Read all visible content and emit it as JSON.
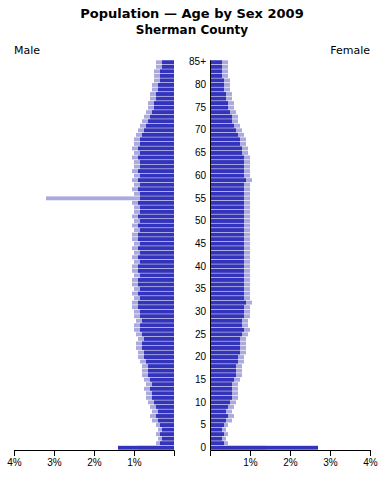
{
  "chart_data": [
    {
      "type": "bar",
      "orientation": "horizontal",
      "title": "Population — Age by Sex 2009",
      "subtitle": "Sherman County",
      "annotations": [
        "Male"
      ],
      "tick_labels": "x",
      "grid": false,
      "categories": [
        "0",
        null,
        null,
        null,
        null,
        "5",
        null,
        null,
        null,
        null,
        "10",
        null,
        null,
        null,
        null,
        "15",
        null,
        null,
        null,
        null,
        "20",
        null,
        null,
        null,
        null,
        "25",
        null,
        null,
        null,
        null,
        "30",
        null,
        null,
        null,
        null,
        "35",
        null,
        null,
        null,
        null,
        "40",
        null,
        null,
        null,
        null,
        "45",
        null,
        null,
        null,
        null,
        "50",
        null,
        null,
        null,
        null,
        "55",
        null,
        null,
        null,
        null,
        "60",
        null,
        null,
        null,
        null,
        "65",
        null,
        null,
        null,
        null,
        "70",
        null,
        null,
        null,
        null,
        "75",
        null,
        null,
        null,
        null,
        "80",
        null,
        null,
        null,
        null,
        "85+"
      ],
      "series": [
        {
          "color": "#aaaadd",
          "values": [
            0.9,
            0.45,
            0.4,
            0.45,
            0.4,
            0.45,
            0.55,
            0.6,
            0.55,
            0.6,
            0.65,
            0.7,
            0.7,
            0.75,
            0.7,
            0.75,
            0.8,
            0.8,
            0.8,
            0.85,
            0.9,
            0.9,
            0.95,
            0.95,
            0.9,
            0.95,
            1.0,
            1.0,
            0.95,
            1.0,
            1.0,
            1.05,
            1.05,
            1.0,
            1.05,
            1.0,
            1.05,
            1.05,
            1.0,
            1.05,
            1.05,
            1.0,
            1.05,
            1.0,
            1.05,
            1.0,
            1.05,
            1.05,
            1.0,
            1.05,
            1.0,
            1.05,
            1.0,
            1.0,
            1.05,
            3.2,
            1.0,
            1.05,
            1.0,
            1.05,
            1.0,
            1.05,
            1.0,
            1.0,
            1.05,
            1.0,
            1.05,
            1.0,
            1.0,
            0.95,
            0.9,
            0.85,
            0.8,
            0.75,
            0.7,
            0.65,
            0.65,
            0.6,
            0.6,
            0.55,
            0.55,
            0.5,
            0.5,
            0.5,
            0.45,
            0.45
          ]
        },
        {
          "color": "#3333bb",
          "values": [
            1.4,
            0.35,
            0.3,
            0.35,
            0.3,
            0.35,
            0.4,
            0.45,
            0.4,
            0.45,
            0.5,
            0.55,
            0.55,
            0.6,
            0.55,
            0.6,
            0.65,
            0.65,
            0.65,
            0.7,
            0.75,
            0.75,
            0.8,
            0.8,
            0.75,
            0.8,
            0.85,
            0.85,
            0.8,
            0.85,
            0.85,
            0.9,
            0.9,
            0.85,
            0.9,
            0.85,
            0.9,
            0.9,
            0.85,
            0.9,
            0.9,
            0.85,
            0.9,
            0.85,
            0.9,
            0.85,
            0.9,
            0.9,
            0.85,
            0.9,
            0.85,
            0.9,
            0.85,
            0.85,
            0.9,
            0.85,
            0.85,
            0.9,
            0.85,
            0.9,
            0.85,
            0.9,
            0.85,
            0.85,
            0.9,
            0.85,
            0.9,
            0.85,
            0.85,
            0.8,
            0.75,
            0.7,
            0.65,
            0.6,
            0.55,
            0.5,
            0.5,
            0.45,
            0.45,
            0.4,
            0.4,
            0.35,
            0.35,
            0.35,
            0.3,
            0.3
          ]
        }
      ],
      "xlim": [
        4.0,
        0
      ],
      "xticks": [
        {
          "value": 1,
          "label": "1%"
        },
        {
          "value": 2,
          "label": "2%"
        },
        {
          "value": 3,
          "label": "3%"
        },
        {
          "value": 4,
          "label": "4%"
        }
      ]
    },
    {
      "type": "bar",
      "orientation": "horizontal",
      "annotations": [
        "Female"
      ],
      "grid": false,
      "categories": [
        "0",
        null,
        null,
        null,
        null,
        "5",
        null,
        null,
        null,
        null,
        "10",
        null,
        null,
        null,
        null,
        "15",
        null,
        null,
        null,
        null,
        "20",
        null,
        null,
        null,
        null,
        "25",
        null,
        null,
        null,
        null,
        "30",
        null,
        null,
        null,
        null,
        "35",
        null,
        null,
        null,
        null,
        "40",
        null,
        null,
        null,
        null,
        "45",
        null,
        null,
        null,
        null,
        "50",
        null,
        null,
        null,
        null,
        "55",
        null,
        null,
        null,
        null,
        "60",
        null,
        null,
        null,
        null,
        "65",
        null,
        null,
        null,
        null,
        "70",
        null,
        null,
        null,
        null,
        "75",
        null,
        null,
        null,
        null,
        "80",
        null,
        null,
        null,
        null,
        "85+"
      ],
      "series": [
        {
          "color": "#aaaadd",
          "values": [
            1.4,
            0.45,
            0.4,
            0.45,
            0.4,
            0.45,
            0.55,
            0.6,
            0.55,
            0.6,
            0.65,
            0.7,
            0.7,
            0.7,
            0.7,
            0.75,
            0.8,
            0.8,
            0.8,
            0.85,
            0.85,
            0.9,
            0.9,
            0.9,
            0.9,
            0.95,
            1.0,
            0.95,
            0.95,
            1.0,
            1.0,
            1.0,
            1.05,
            1.0,
            1.0,
            1.0,
            1.0,
            1.0,
            1.0,
            1.0,
            1.0,
            1.0,
            1.0,
            1.0,
            1.0,
            1.0,
            1.0,
            1.0,
            1.0,
            1.0,
            1.0,
            1.0,
            1.0,
            1.0,
            1.0,
            1.0,
            1.0,
            1.0,
            1.0,
            1.05,
            1.0,
            1.0,
            1.0,
            1.0,
            1.0,
            0.95,
            0.95,
            0.9,
            0.9,
            0.85,
            0.8,
            0.75,
            0.7,
            0.7,
            0.65,
            0.6,
            0.6,
            0.55,
            0.55,
            0.5,
            0.5,
            0.5,
            0.45,
            0.45,
            0.45,
            0.45
          ]
        },
        {
          "color": "#3333bb",
          "values": [
            2.7,
            0.35,
            0.3,
            0.35,
            0.3,
            0.35,
            0.4,
            0.45,
            0.4,
            0.45,
            0.5,
            0.55,
            0.55,
            0.55,
            0.55,
            0.6,
            0.65,
            0.65,
            0.65,
            0.7,
            0.7,
            0.75,
            0.75,
            0.75,
            0.75,
            0.8,
            0.85,
            0.8,
            0.8,
            0.85,
            0.85,
            0.85,
            0.9,
            0.85,
            0.85,
            0.85,
            0.85,
            0.85,
            0.85,
            0.85,
            0.85,
            0.85,
            0.85,
            0.85,
            0.85,
            0.85,
            0.85,
            0.85,
            0.85,
            0.85,
            0.85,
            0.85,
            0.85,
            0.85,
            0.85,
            0.85,
            0.85,
            0.85,
            0.85,
            0.9,
            0.85,
            0.85,
            0.85,
            0.85,
            0.85,
            0.8,
            0.8,
            0.75,
            0.75,
            0.7,
            0.65,
            0.6,
            0.55,
            0.55,
            0.5,
            0.45,
            0.45,
            0.4,
            0.4,
            0.35,
            0.35,
            0.35,
            0.3,
            0.3,
            0.3,
            0.3
          ]
        }
      ],
      "xlim": [
        0,
        4.0
      ],
      "xticks": [
        {
          "value": 1,
          "label": "1%"
        },
        {
          "value": 2,
          "label": "2%"
        },
        {
          "value": 3,
          "label": "3%"
        },
        {
          "value": 4,
          "label": "4%"
        }
      ]
    }
  ]
}
